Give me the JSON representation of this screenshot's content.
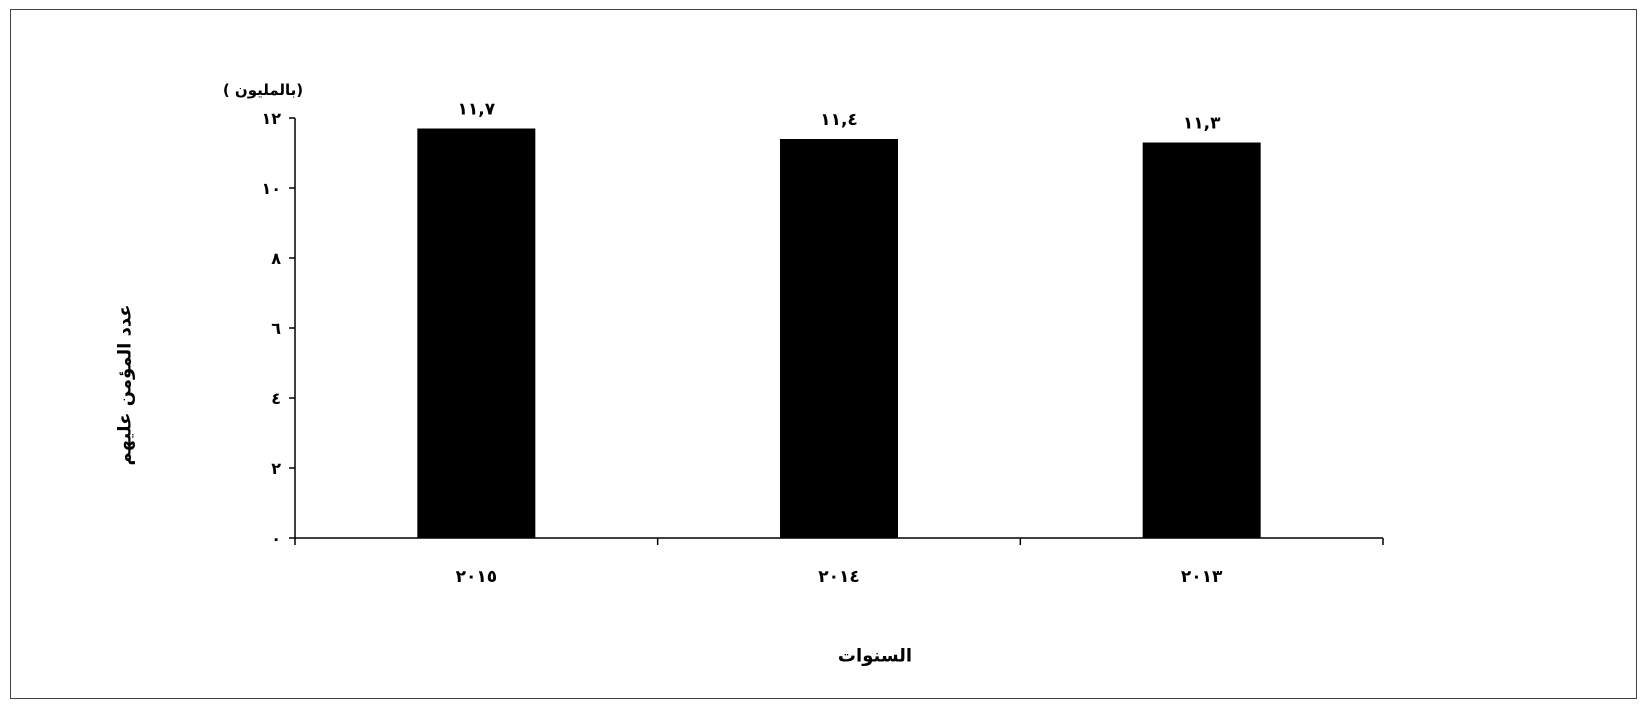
{
  "chart_data": {
    "type": "bar",
    "categories": [
      "٢٠١٥",
      "٢٠١٤",
      "٢٠١٣"
    ],
    "values": [
      11.7,
      11.4,
      11.3
    ],
    "value_labels": [
      "١١,٧",
      "١١,٤",
      "١١,٣"
    ],
    "title": "",
    "xlabel": "السنوات",
    "ylabel": "عدد المؤمن عليهم",
    "unit_label": "(بالمليون )",
    "ylim": [
      0,
      12
    ],
    "yticks": [
      0,
      2,
      4,
      6,
      8,
      10,
      12
    ],
    "ytick_labels": [
      "٠",
      "٢",
      "٤",
      "٦",
      "٨",
      "١٠",
      "١٢"
    ],
    "bar_color": "#000000",
    "grid": false,
    "legend": "none"
  }
}
